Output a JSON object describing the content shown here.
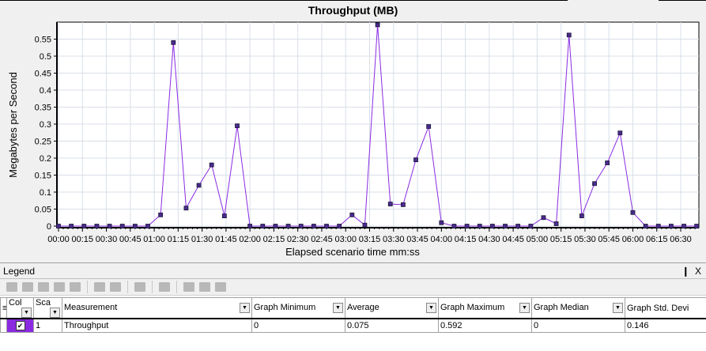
{
  "chart_data": {
    "type": "line",
    "title": "Throughput (MB)",
    "xlabel": "Elapsed scenario time mm:ss",
    "ylabel": "Megabytes per Second",
    "ylim": [
      0,
      0.6
    ],
    "xlim_seconds": [
      0,
      400
    ],
    "grid": true,
    "yticks": [
      "0",
      "0.05",
      "0.1",
      "0.15",
      "0.2",
      "0.25",
      "0.3",
      "0.35",
      "0.4",
      "0.45",
      "0.5",
      "0.55"
    ],
    "xticks": [
      "00:00",
      "00:15",
      "00:30",
      "00:45",
      "01:00",
      "01:15",
      "01:30",
      "01:45",
      "02:00",
      "02:15",
      "02:30",
      "02:45",
      "03:00",
      "03:15",
      "03:30",
      "03:45",
      "04:00",
      "04:15",
      "04:30",
      "04:45",
      "05:00",
      "05:15",
      "05:30",
      "05:45",
      "06:00",
      "06:15",
      "06:30"
    ],
    "series": [
      {
        "name": "Throughput",
        "color": "#8a2be2",
        "x_step_seconds": 8,
        "values": [
          0,
          0,
          0,
          0,
          0,
          0,
          0,
          0,
          0.033,
          0.54,
          0.053,
          0.12,
          0.18,
          0.03,
          0.295,
          0,
          0,
          0,
          0,
          0,
          0,
          0,
          0,
          0.033,
          0.003,
          0.592,
          0.065,
          0.063,
          0.195,
          0.293,
          0.01,
          0,
          0,
          0,
          0,
          0,
          0,
          0,
          0.025,
          0.007,
          0.562,
          0.03,
          0.125,
          0.186,
          0.274,
          0.04,
          0,
          0,
          0,
          0,
          0
        ]
      }
    ]
  },
  "legend": {
    "title": "Legend",
    "pin": "❙",
    "close": "X",
    "columns": [
      "Col",
      "Sca",
      "Measurement",
      "Graph Minimum",
      "Average",
      "Graph Maximum",
      "Graph Median",
      "Graph Std. Devi"
    ],
    "rows": [
      {
        "scale": "1",
        "measurement": "Throughput",
        "min": "0",
        "avg": "0.075",
        "max": "0.592",
        "median": "0",
        "std": "0.146",
        "checked": "✔"
      }
    ]
  }
}
